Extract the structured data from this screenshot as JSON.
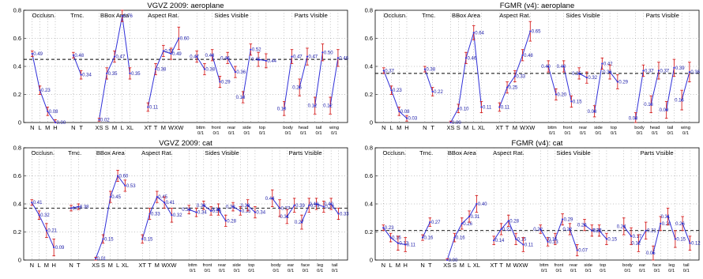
{
  "colors": {
    "line": "#2f2fd8",
    "err": "#d62020",
    "mean": "#000000",
    "grid": "#888888"
  },
  "chart_data": [
    {
      "type": "line",
      "title": "VGVZ 2009: aeroplane",
      "ylim": [
        0,
        0.8
      ],
      "yticks": [
        "0",
        "0.2",
        "0.4",
        "0.6",
        "0.8"
      ],
      "mean": 0.45,
      "groups": [
        {
          "name": "Occlusn.",
          "ticks": [
            "N",
            "L",
            "M",
            "H"
          ],
          "values": [
            0.49,
            0.23,
            0.08,
            0.0
          ],
          "err": [
            0.02,
            0.03,
            0.03,
            0.02
          ],
          "labels": [
            "0.49",
            "0.23",
            "0.08",
            "0.00"
          ]
        },
        {
          "name": "Trnc.",
          "ticks": [
            "N",
            "T"
          ],
          "values": [
            0.48,
            0.34
          ],
          "err": [
            0.02,
            0.03
          ],
          "labels": [
            "0.48",
            "0.34"
          ]
        },
        {
          "name": "BBox Area",
          "ticks": [
            "XS",
            "S",
            "M",
            "L",
            "XL"
          ],
          "values": [
            0.02,
            0.35,
            0.47,
            0.76,
            0.35
          ],
          "err": [
            0.01,
            0.04,
            0.04,
            0.04,
            0.04
          ],
          "labels": [
            "0.02",
            "0.35",
            "0.47",
            "0.76",
            "0.35"
          ]
        },
        {
          "name": "Aspect Rat.",
          "ticks": [
            "XT",
            "T",
            "M",
            "W",
            "XW"
          ],
          "values": [
            0.11,
            0.38,
            0.51,
            0.49,
            0.6
          ],
          "err": [
            0.03,
            0.04,
            0.04,
            0.04,
            0.08
          ],
          "labels": [
            "0.11",
            "0.38",
            "0.51",
            "0.49",
            "0.60"
          ]
        },
        {
          "name": "Sides Visible",
          "pairs": [
            [
              "bttm",
              "0.47",
              "0.38"
            ],
            [
              "front",
              "0.48",
              "0.29"
            ],
            [
              "rear",
              "0.46",
              "0.36"
            ],
            [
              "side",
              "0.18",
              "0.52"
            ],
            [
              "top",
              "0.45",
              "0.44"
            ]
          ],
          "values": [
            [
              0.47,
              0.38
            ],
            [
              0.48,
              0.29
            ],
            [
              0.46,
              0.36
            ],
            [
              0.18,
              0.52
            ],
            [
              0.45,
              0.44
            ]
          ],
          "err": [
            0.04,
            0.04,
            0.04,
            0.04,
            0.05
          ]
        },
        {
          "name": "Parts Visible",
          "pairs": [
            [
              "body",
              "0.10",
              "0.47"
            ],
            [
              "head",
              "0.25",
              "0.47"
            ],
            [
              "tail",
              "0.12",
              "0.50"
            ],
            [
              "wing",
              "0.12",
              "0.46"
            ]
          ],
          "values": [
            [
              0.1,
              0.47
            ],
            [
              0.25,
              0.47
            ],
            [
              0.12,
              0.5
            ],
            [
              0.12,
              0.46
            ]
          ],
          "err": [
            0.05,
            0.06,
            0.06,
            0.06
          ]
        }
      ]
    },
    {
      "type": "line",
      "title": "FGMR (v4): aeroplane",
      "ylim": [
        0,
        0.8
      ],
      "yticks": [
        "0",
        "0.2",
        "0.4",
        "0.6",
        "0.8"
      ],
      "mean": 0.35,
      "groups": [
        {
          "name": "Occlusn.",
          "ticks": [
            "N",
            "L",
            "M",
            "H"
          ],
          "values": [
            0.37,
            0.23,
            0.08,
            0.03
          ],
          "err": [
            0.02,
            0.03,
            0.03,
            0.02
          ],
          "labels": [
            "0.37",
            "0.23",
            "0.08",
            "0.03"
          ]
        },
        {
          "name": "Trnc.",
          "ticks": [
            "N",
            "T"
          ],
          "values": [
            0.38,
            0.22
          ],
          "err": [
            0.02,
            0.03
          ],
          "labels": [
            "0.38",
            "0.22"
          ]
        },
        {
          "name": "BBox Area",
          "ticks": [
            "XS",
            "S",
            "M",
            "L",
            "XL"
          ],
          "values": [
            0.0,
            0.1,
            0.46,
            0.64,
            0.11
          ],
          "err": [
            0.01,
            0.03,
            0.04,
            0.05,
            0.04
          ],
          "labels": [
            "0.00",
            "0.10",
            "0.46",
            "0.64",
            "0.11"
          ]
        },
        {
          "name": "Aspect Rat.",
          "ticks": [
            "XT",
            "T",
            "M",
            "W",
            "XW"
          ],
          "values": [
            0.11,
            0.25,
            0.33,
            0.48,
            0.65
          ],
          "err": [
            0.03,
            0.04,
            0.04,
            0.04,
            0.07
          ],
          "labels": [
            "0.11",
            "0.25",
            "0.33",
            "0.48",
            "0.65"
          ]
        },
        {
          "name": "Sides Visible",
          "pairs": [
            [
              "bttm",
              "0.40",
              "0.20"
            ],
            [
              "front",
              "0.40",
              "0.15"
            ],
            [
              "rear",
              "0.35",
              "0.32"
            ],
            [
              "side",
              "0.08",
              "0.42"
            ],
            [
              "top",
              "0.36",
              "0.29"
            ]
          ],
          "values": [
            [
              0.4,
              0.2
            ],
            [
              0.4,
              0.15
            ],
            [
              0.35,
              0.32
            ],
            [
              0.08,
              0.42
            ],
            [
              0.36,
              0.29
            ]
          ],
          "err": [
            0.04,
            0.04,
            0.04,
            0.04,
            0.05
          ]
        },
        {
          "name": "Parts Visible",
          "pairs": [
            [
              "body",
              "0.03",
              "0.37"
            ],
            [
              "head",
              "0.13",
              "0.37"
            ],
            [
              "tail",
              "0.09",
              "0.39"
            ],
            [
              "wing",
              "0.16",
              "0.36"
            ]
          ],
          "values": [
            [
              0.03,
              0.37
            ],
            [
              0.13,
              0.37
            ],
            [
              0.09,
              0.39
            ],
            [
              0.16,
              0.36
            ]
          ],
          "err": [
            0.04,
            0.06,
            0.06,
            0.07
          ]
        }
      ]
    },
    {
      "type": "line",
      "title": "VGVZ 2009: cat",
      "ylim": [
        0,
        0.8
      ],
      "yticks": [
        "0",
        "0.2",
        "0.4",
        "0.6",
        "0.8"
      ],
      "mean": 0.37,
      "groups": [
        {
          "name": "Occlusn.",
          "ticks": [
            "N",
            "L",
            "M",
            "H"
          ],
          "values": [
            0.41,
            0.32,
            0.21,
            0.09
          ],
          "err": [
            0.02,
            0.03,
            0.05,
            0.06
          ],
          "labels": [
            "0.41",
            "0.32",
            "0.21",
            "0.09"
          ]
        },
        {
          "name": "Trnc.",
          "ticks": [
            "N",
            "T"
          ],
          "values": [
            0.37,
            0.38
          ],
          "err": [
            0.02,
            0.02
          ],
          "labels": [
            "0.37",
            "0.38"
          ]
        },
        {
          "name": "BBox Area",
          "ticks": [
            "XS",
            "S",
            "M",
            "L",
            "XL"
          ],
          "values": [
            0.01,
            0.15,
            0.45,
            0.6,
            0.53
          ],
          "err": [
            0.01,
            0.03,
            0.04,
            0.04,
            0.04
          ],
          "labels": [
            "0.01",
            "0.15",
            "0.45",
            "0.60",
            "0.53"
          ]
        },
        {
          "name": "Aspect Rat.",
          "ticks": [
            "XT",
            "T",
            "M",
            "W",
            "XW"
          ],
          "values": [
            0.15,
            0.33,
            0.45,
            0.41,
            0.32
          ],
          "err": [
            0.03,
            0.04,
            0.04,
            0.04,
            0.05
          ],
          "labels": [
            "0.15",
            "0.33",
            "0.45",
            "0.41",
            "0.32"
          ]
        },
        {
          "name": "Sides Visible",
          "pairs": [
            [
              "bttm",
              "0.36",
              "0.34"
            ],
            [
              "front",
              "0.39",
              "0.35"
            ],
            [
              "rear",
              "0.36",
              "0.28"
            ],
            [
              "side",
              "0.38",
              "0.35"
            ],
            [
              "top",
              "0.39",
              "0.34"
            ]
          ],
          "values": [
            [
              0.36,
              0.34
            ],
            [
              0.39,
              0.35
            ],
            [
              0.36,
              0.28
            ],
            [
              0.38,
              0.35
            ],
            [
              0.39,
              0.34
            ]
          ],
          "err": [
            0.03,
            0.03,
            0.04,
            0.03,
            0.04
          ]
        },
        {
          "name": "Parts Visible",
          "pairs": [
            [
              "body",
              "0.44",
              "0.37"
            ],
            [
              "ear",
              "0.31",
              "0.39"
            ],
            [
              "face",
              "0.27",
              "0.39"
            ],
            [
              "leg",
              "0.40",
              "0.38"
            ],
            [
              "tail",
              "0.40",
              "0.33"
            ]
          ],
          "values": [
            [
              0.44,
              0.37
            ],
            [
              0.31,
              0.39
            ],
            [
              0.27,
              0.39
            ],
            [
              0.4,
              0.38
            ],
            [
              0.4,
              0.33
            ]
          ],
          "err": [
            0.06,
            0.05,
            0.05,
            0.04,
            0.04
          ]
        }
      ]
    },
    {
      "type": "line",
      "title": "FGMR (v4): cat",
      "ylim": [
        0,
        0.8
      ],
      "yticks": [
        "0",
        "0.2",
        "0.4",
        "0.6",
        "0.8"
      ],
      "mean": 0.21,
      "groups": [
        {
          "name": "Occlusn.",
          "ticks": [
            "N",
            "L",
            "M",
            "H"
          ],
          "values": [
            0.23,
            0.16,
            0.12,
            0.11
          ],
          "err": [
            0.02,
            0.03,
            0.05,
            0.05
          ],
          "labels": [
            "0.23",
            "0.16",
            "0.12",
            "0.11"
          ]
        },
        {
          "name": "Trnc.",
          "ticks": [
            "N",
            "T"
          ],
          "values": [
            0.16,
            0.27
          ],
          "err": [
            0.02,
            0.03
          ],
          "labels": [
            "0.16",
            "0.27"
          ]
        },
        {
          "name": "BBox Area",
          "ticks": [
            "XS",
            "S",
            "M",
            "L",
            "XL"
          ],
          "values": [
            0.0,
            0.16,
            0.26,
            0.31,
            0.4
          ],
          "err": [
            0.01,
            0.03,
            0.04,
            0.04,
            0.06
          ],
          "labels": [
            "0.00",
            "0.16",
            "0.26",
            "0.31",
            "0.40"
          ]
        },
        {
          "name": "Aspect Rat.",
          "ticks": [
            "XT",
            "T",
            "M",
            "W",
            "XW"
          ],
          "values": [
            0.14,
            0.22,
            0.28,
            0.15,
            0.11
          ],
          "err": [
            0.03,
            0.04,
            0.04,
            0.04,
            0.05
          ],
          "labels": [
            "0.14",
            "0.22",
            "0.28",
            "0.15",
            "0.11"
          ]
        },
        {
          "name": "Sides Visible",
          "pairs": [
            [
              "bttm",
              "0.22",
              "0.13"
            ],
            [
              "front",
              "0.15",
              "0.29"
            ],
            [
              "rear",
              "0.22",
              "0.07"
            ],
            [
              "side",
              "0.25",
              "0.21"
            ],
            [
              "top",
              "0.21",
              "0.15"
            ]
          ],
          "values": [
            [
              0.22,
              0.13
            ],
            [
              0.15,
              0.29
            ],
            [
              0.22,
              0.07
            ],
            [
              0.25,
              0.21
            ],
            [
              0.21,
              0.15
            ]
          ],
          "err": [
            0.03,
            0.04,
            0.04,
            0.04,
            0.04
          ]
        },
        {
          "name": "Parts Visible",
          "pairs": [
            [
              "body",
              "0.24",
              "0.17"
            ],
            [
              "ear",
              "0.12",
              "0.21"
            ],
            [
              "face",
              "0.05",
              "0.26"
            ],
            [
              "leg",
              "0.31",
              "0.15"
            ],
            [
              "tail",
              "0.26",
              "0.12"
            ]
          ],
          "values": [
            [
              0.24,
              0.17
            ],
            [
              0.12,
              0.21
            ],
            [
              0.05,
              0.26
            ],
            [
              0.31,
              0.15
            ],
            [
              0.26,
              0.12
            ]
          ],
          "err": [
            0.06,
            0.06,
            0.05,
            0.06,
            0.05
          ]
        }
      ]
    }
  ]
}
